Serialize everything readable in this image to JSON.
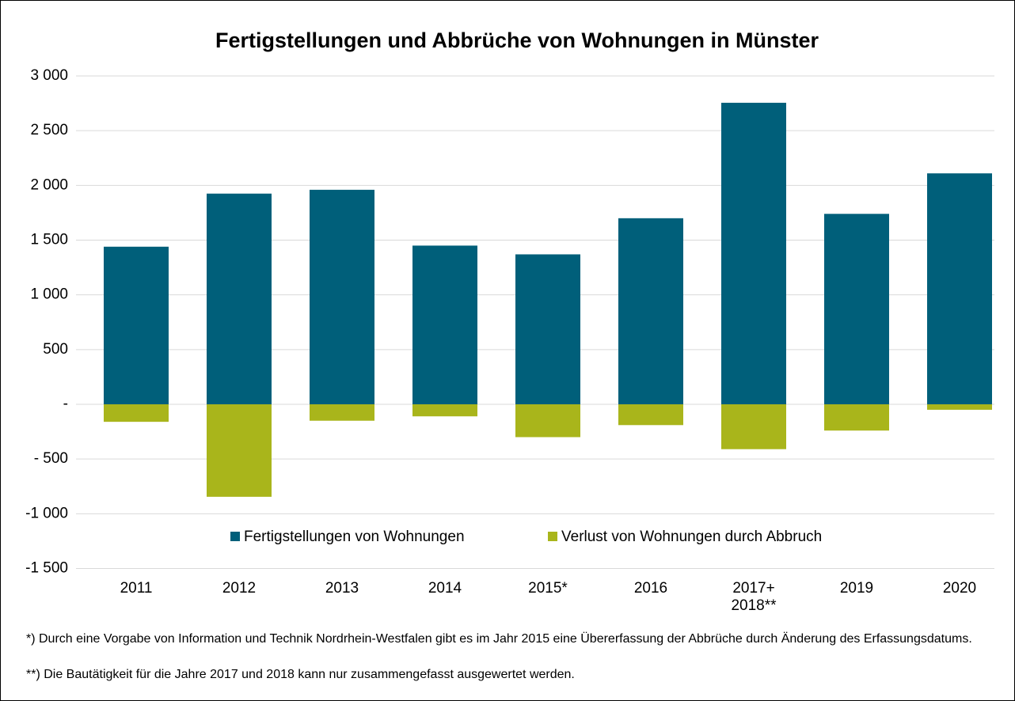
{
  "chart_data": {
    "type": "bar",
    "title": "Fertigstellungen und Abbrüche von Wohnungen in Münster",
    "categories": [
      "2011",
      "2012",
      "2013",
      "2014",
      "2015*",
      "2016",
      "2017+\n2018**",
      "2019",
      "2020"
    ],
    "series": [
      {
        "name": "Fertigstellungen von Wohnungen",
        "color": "#005f7a",
        "values": [
          1440,
          1925,
          1960,
          1450,
          1370,
          1700,
          2755,
          1740,
          2110
        ]
      },
      {
        "name": "Verlust von Wohnungen durch Abbruch",
        "color": "#a9b51b",
        "values": [
          -160,
          -845,
          -150,
          -110,
          -300,
          -190,
          -410,
          -240,
          -50
        ]
      }
    ],
    "ylim": [
      -1500,
      3000
    ],
    "yticks": [
      {
        "value": -1500,
        "label": "-1 500"
      },
      {
        "value": -1000,
        "label": "-1 000"
      },
      {
        "value": -500,
        "label": "- 500"
      },
      {
        "value": 0,
        "label": "-"
      },
      500,
      {
        "value": 1000,
        "label": "1 000"
      },
      {
        "value": 1500,
        "label": "1 500"
      },
      {
        "value": 2000,
        "label": "2 000"
      },
      {
        "value": 2500,
        "label": "2 500"
      },
      {
        "value": 3000,
        "label": "3 000"
      }
    ],
    "grid": true,
    "legend": "bottom",
    "footnotes": [
      "*) Durch eine Vorgabe von Information und Technik Nordrhein-Westfalen gibt es im Jahr 2015 eine Übererfassung der Abbrüche durch Änderung des Erfassungsdatums.",
      "**) Die Bautätigkeit für die Jahre 2017 und 2018 kann nur zusammengefasst ausgewertet werden."
    ]
  }
}
